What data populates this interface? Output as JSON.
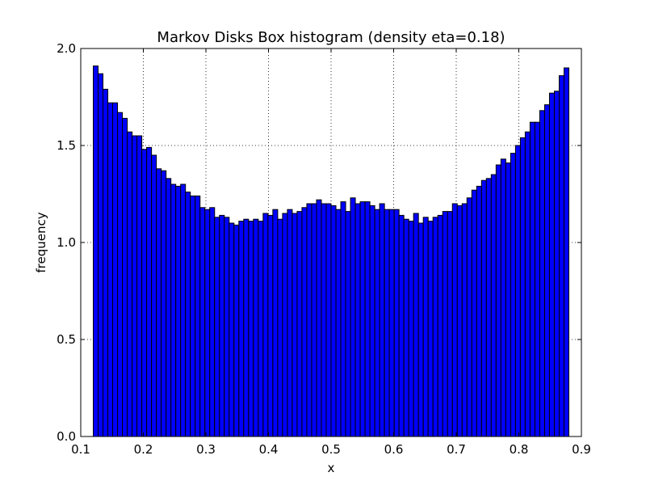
{
  "chart_data": {
    "type": "bar",
    "title": "Markov Disks Box histogram (density eta=0.18)",
    "xlabel": "x",
    "ylabel": "frequency",
    "xlim": [
      0.1,
      0.9
    ],
    "ylim": [
      0.0,
      2.0
    ],
    "xticks": [
      "0.1",
      "0.2",
      "0.3",
      "0.4",
      "0.5",
      "0.6",
      "0.7",
      "0.8",
      "0.9"
    ],
    "yticks": [
      "0.0",
      "0.5",
      "1.0",
      "1.5",
      "2.0"
    ],
    "grid": true,
    "bar_color": "#0000ff",
    "edge_color": "#000000",
    "bin_range": [
      0.12,
      0.88
    ],
    "values": [
      1.91,
      1.87,
      1.79,
      1.72,
      1.72,
      1.67,
      1.64,
      1.57,
      1.55,
      1.55,
      1.48,
      1.49,
      1.45,
      1.38,
      1.37,
      1.33,
      1.3,
      1.29,
      1.3,
      1.26,
      1.24,
      1.24,
      1.18,
      1.17,
      1.18,
      1.13,
      1.14,
      1.13,
      1.1,
      1.09,
      1.11,
      1.12,
      1.11,
      1.12,
      1.11,
      1.15,
      1.14,
      1.17,
      1.12,
      1.15,
      1.17,
      1.15,
      1.16,
      1.18,
      1.2,
      1.2,
      1.22,
      1.2,
      1.2,
      1.19,
      1.17,
      1.21,
      1.16,
      1.23,
      1.2,
      1.21,
      1.21,
      1.19,
      1.17,
      1.2,
      1.17,
      1.17,
      1.17,
      1.14,
      1.12,
      1.11,
      1.15,
      1.1,
      1.13,
      1.11,
      1.13,
      1.14,
      1.16,
      1.16,
      1.2,
      1.19,
      1.2,
      1.23,
      1.27,
      1.29,
      1.32,
      1.33,
      1.35,
      1.4,
      1.43,
      1.41,
      1.46,
      1.5,
      1.54,
      1.57,
      1.62,
      1.62,
      1.68,
      1.71,
      1.77,
      1.78,
      1.86,
      1.9
    ]
  }
}
